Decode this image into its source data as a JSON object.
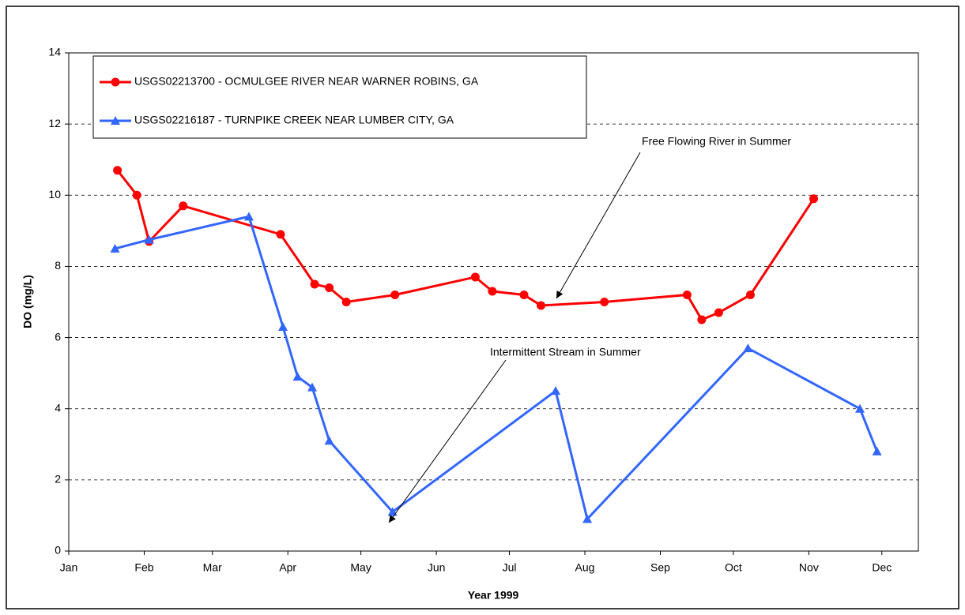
{
  "chart_data": {
    "type": "line",
    "x_label": "Year 1999",
    "y_label": "DO (mg/L)",
    "xlim": [
      0,
      349
    ],
    "xticks": [
      {
        "value": 0,
        "label": "Jan"
      },
      {
        "value": 31,
        "label": "Feb"
      },
      {
        "value": 59,
        "label": "Mar"
      },
      {
        "value": 90,
        "label": "Apr"
      },
      {
        "value": 120,
        "label": "May"
      },
      {
        "value": 151,
        "label": "Jun"
      },
      {
        "value": 181,
        "label": "Jul"
      },
      {
        "value": 212,
        "label": "Aug"
      },
      {
        "value": 243,
        "label": "Sep"
      },
      {
        "value": 273,
        "label": "Oct"
      },
      {
        "value": 304,
        "label": "Nov"
      },
      {
        "value": 334,
        "label": "Dec"
      }
    ],
    "ylim": [
      0,
      14
    ],
    "yticks": [
      0,
      2,
      4,
      6,
      8,
      10,
      12,
      14
    ],
    "grid": true,
    "legend": "upper left",
    "annotations": [
      "Free Flowing River in Summer",
      "Intermittent Stream in Summer"
    ],
    "series": [
      {
        "name": "USGS02213700 - OCMULGEE RIVER NEAR WARNER ROBINS, GA",
        "color": "#ff0000",
        "marker": "circle",
        "x": [
          20,
          28,
          33,
          47,
          87,
          101,
          107,
          114,
          134,
          167,
          174,
          187,
          194,
          220,
          254,
          260,
          267,
          280,
          306
        ],
        "values": [
          10.7,
          10.0,
          8.7,
          9.7,
          8.9,
          7.5,
          7.4,
          7.0,
          7.2,
          7.7,
          7.3,
          7.2,
          6.9,
          7.0,
          7.2,
          6.5,
          6.7,
          7.2,
          9.9
        ]
      },
      {
        "name": "USGS02216187 - TURNPIKE CREEK NEAR LUMBER CITY, GA",
        "color": "#3366ff",
        "marker": "triangle",
        "x": [
          19,
          33,
          74,
          88,
          94,
          100,
          107,
          133,
          200,
          213,
          279,
          325,
          332
        ],
        "values": [
          8.5,
          8.75,
          9.4,
          6.3,
          4.9,
          4.6,
          3.1,
          1.1,
          4.5,
          0.9,
          5.7,
          4.0,
          2.8
        ]
      }
    ]
  }
}
